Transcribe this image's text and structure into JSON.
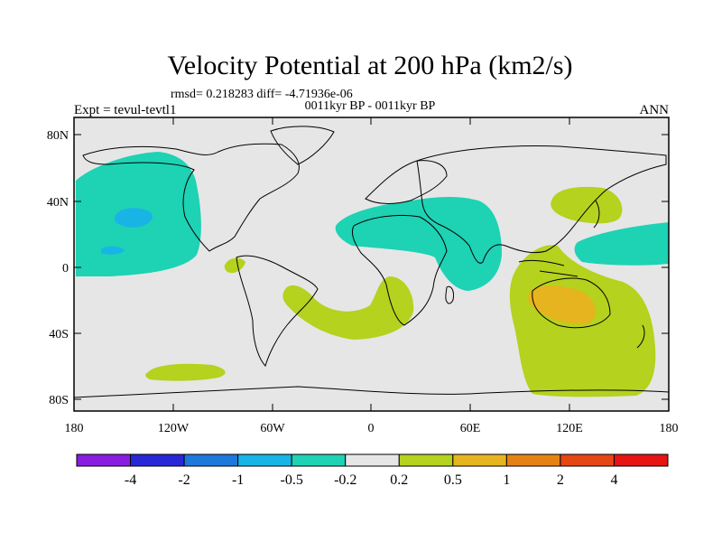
{
  "title": "Velocity Potential at 200 hPa (km2/s)",
  "stats": "rmsd= 0.218283 diff= -4.71936e-06",
  "subtitle": "0011kyr BP - 0011kyr BP",
  "left_label": "Expt = tevul-tevtl1",
  "right_label": "ANN",
  "lat_ticks": [
    "80N",
    "40N",
    "0",
    "40S",
    "80S"
  ],
  "lon_ticks": [
    "180",
    "120W",
    "60W",
    "0",
    "60E",
    "120E",
    "180"
  ],
  "colorbar": {
    "labels": [
      "-4",
      "-2",
      "-1",
      "-0.5",
      "-0.2",
      "0.2",
      "0.5",
      "1",
      "2",
      "4"
    ],
    "colors": [
      "#8a1ee0",
      "#2828d8",
      "#1e78dc",
      "#18b4e6",
      "#1ed2b4",
      "#e6e6e6",
      "#b4d21e",
      "#e6b41e",
      "#e68214",
      "#e64614",
      "#e61414"
    ]
  },
  "field_colors": {
    "background": "#e6e6e6",
    "neg_weak": "#1ed2b4",
    "neg_mid": "#18b4e6",
    "pos_weak": "#b4d21e",
    "pos_mid": "#e6b41e"
  }
}
